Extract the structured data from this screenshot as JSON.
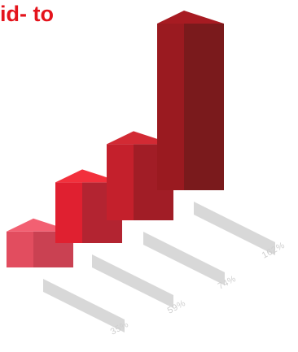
{
  "title": "id- to",
  "chart_data": {
    "type": "bar",
    "title": "id- to",
    "categories": [
      "35%",
      "59%",
      "74%",
      "162%"
    ],
    "values": [
      35,
      59,
      74,
      162
    ],
    "ylim": [
      0,
      162
    ],
    "colors": [
      {
        "front": "#e24d5f",
        "side": "#ca4152",
        "top": "#f26072"
      },
      {
        "front": "#e02030",
        "side": "#b32431",
        "top": "#f2303c"
      },
      {
        "front": "#c4202c",
        "side": "#a11d26",
        "top": "#d22a34"
      },
      {
        "front": "#9a1a20",
        "side": "#7a1a1c",
        "top": "#a71b22"
      }
    ],
    "shadow_color": "#d4d4d4",
    "tick_color": "#cfcfcf",
    "grid": false,
    "legend": "none"
  }
}
